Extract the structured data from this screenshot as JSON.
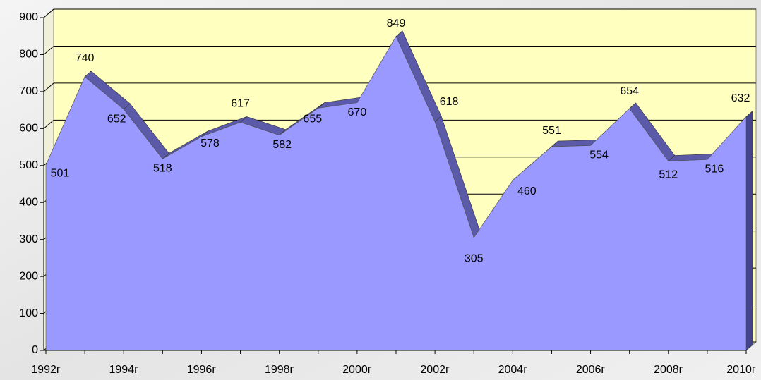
{
  "chart_data": {
    "type": "area",
    "categories": [
      "1992г",
      null,
      "1994г",
      null,
      "1996г",
      null,
      "1998г",
      null,
      "2000г",
      null,
      "2002г",
      null,
      "2004г",
      null,
      "2006г",
      null,
      "2008г",
      null,
      "2010г"
    ],
    "values": [
      501,
      740,
      652,
      518,
      578,
      617,
      582,
      655,
      670,
      849,
      618,
      305,
      460,
      551,
      554,
      654,
      512,
      516,
      632
    ],
    "color": "#9999ff",
    "ylim": [
      0,
      900
    ],
    "yticks": [
      0,
      100,
      200,
      300,
      400,
      500,
      600,
      700,
      800,
      900
    ],
    "grid": true
  }
}
